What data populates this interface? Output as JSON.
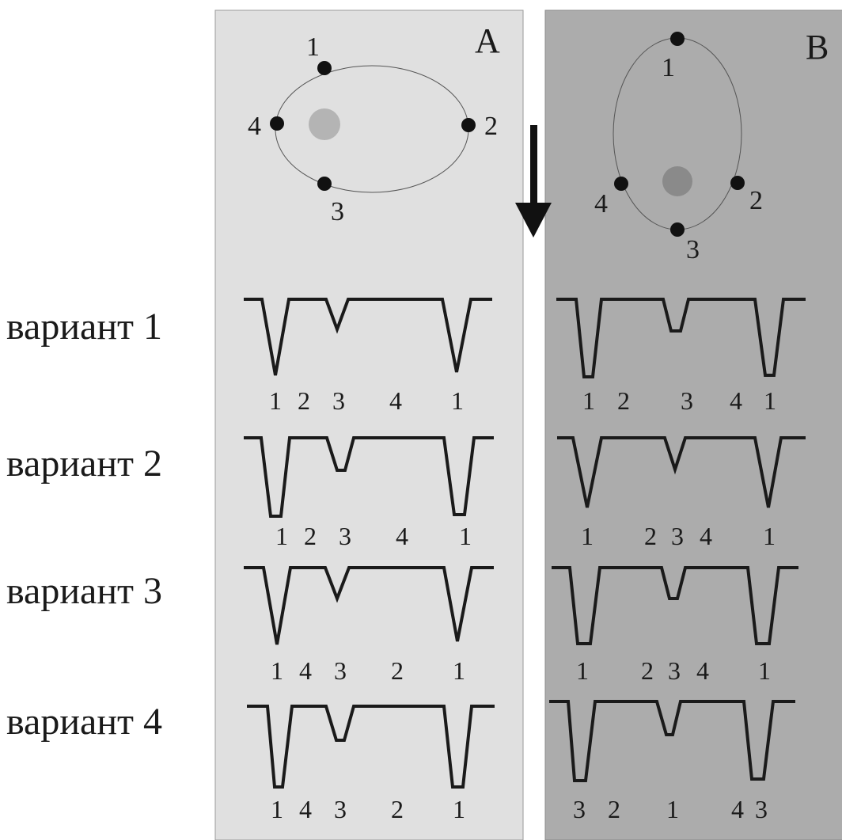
{
  "panels": [
    {
      "key": "A",
      "label": "A",
      "orbit_points": [
        "1",
        "2",
        "3",
        "4"
      ],
      "curves": [
        {
          "phase_labels": [
            "1",
            "2",
            "3",
            "4",
            "1"
          ]
        },
        {
          "phase_labels": [
            "1",
            "2",
            "3",
            "4",
            "1"
          ]
        },
        {
          "phase_labels": [
            "1",
            "4",
            "3",
            "2",
            "1"
          ]
        },
        {
          "phase_labels": [
            "1",
            "4",
            "3",
            "2",
            "1"
          ]
        }
      ]
    },
    {
      "key": "B",
      "label": "B",
      "orbit_points": [
        "1",
        "2",
        "3",
        "4"
      ],
      "curves": [
        {
          "phase_labels": [
            "1",
            "2",
            "3",
            "4",
            "1"
          ]
        },
        {
          "phase_labels": [
            "1",
            "2",
            "3",
            "4",
            "1"
          ]
        },
        {
          "phase_labels": [
            "1",
            "2",
            "3",
            "4",
            "1"
          ]
        },
        {
          "phase_labels": [
            "3",
            "2",
            "1",
            "4",
            "3"
          ]
        }
      ]
    }
  ],
  "variants": [
    "вариант 1",
    "вариант 2",
    "вариант 3",
    "вариант 4"
  ],
  "colors": {
    "panel_a_bg": "#e0e0e0",
    "panel_b_bg": "#acacac",
    "star_a": "#b4b4b4",
    "star_b": "#8a8a8a",
    "ink": "#1a1a1a"
  },
  "arrow": {
    "direction": "down"
  }
}
